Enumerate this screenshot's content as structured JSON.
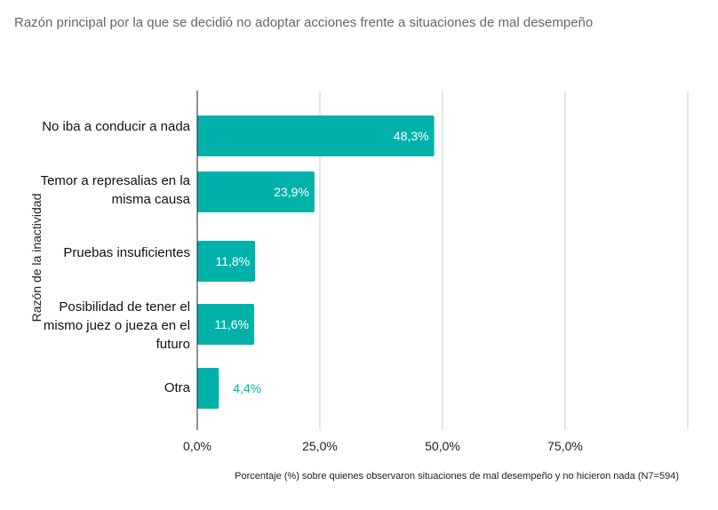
{
  "title": "Razón principal por la que se decidió no adoptar acciones frente a situaciones de mal desempeño",
  "chart_data": {
    "type": "bar",
    "orientation": "horizontal",
    "title": "Razón principal por la que se decidió no adoptar acciones frente a situaciones de mal desempeño",
    "categories": [
      "No iba a conducir a nada",
      "Temor a represalias en la misma causa",
      "Pruebas insuficientes",
      "Posibilidad de tener el mismo juez o jueza en el futuro",
      "Otra"
    ],
    "values": [
      48.3,
      23.9,
      11.8,
      11.6,
      4.4
    ],
    "data_labels": [
      "48,3%",
      "23,9%",
      "11,8%",
      "11,6%",
      "4,4%"
    ],
    "xlim": [
      0,
      100
    ],
    "xticks": [
      "0,0%",
      "25,0%",
      "50,0%",
      "75,0%"
    ],
    "xlabel": "Porcentaje (%) sobre quienes observaron situaciones de mal desempeño y no hicieron nada (N7=594)",
    "ylabel": "Razón de la inactividad",
    "grid": true,
    "colors": {
      "bar": "#00B2A9",
      "label_inside": "#ffffff",
      "label_outside": "#00B2A9",
      "grid": "#cccccc",
      "axis": "#222222"
    }
  }
}
